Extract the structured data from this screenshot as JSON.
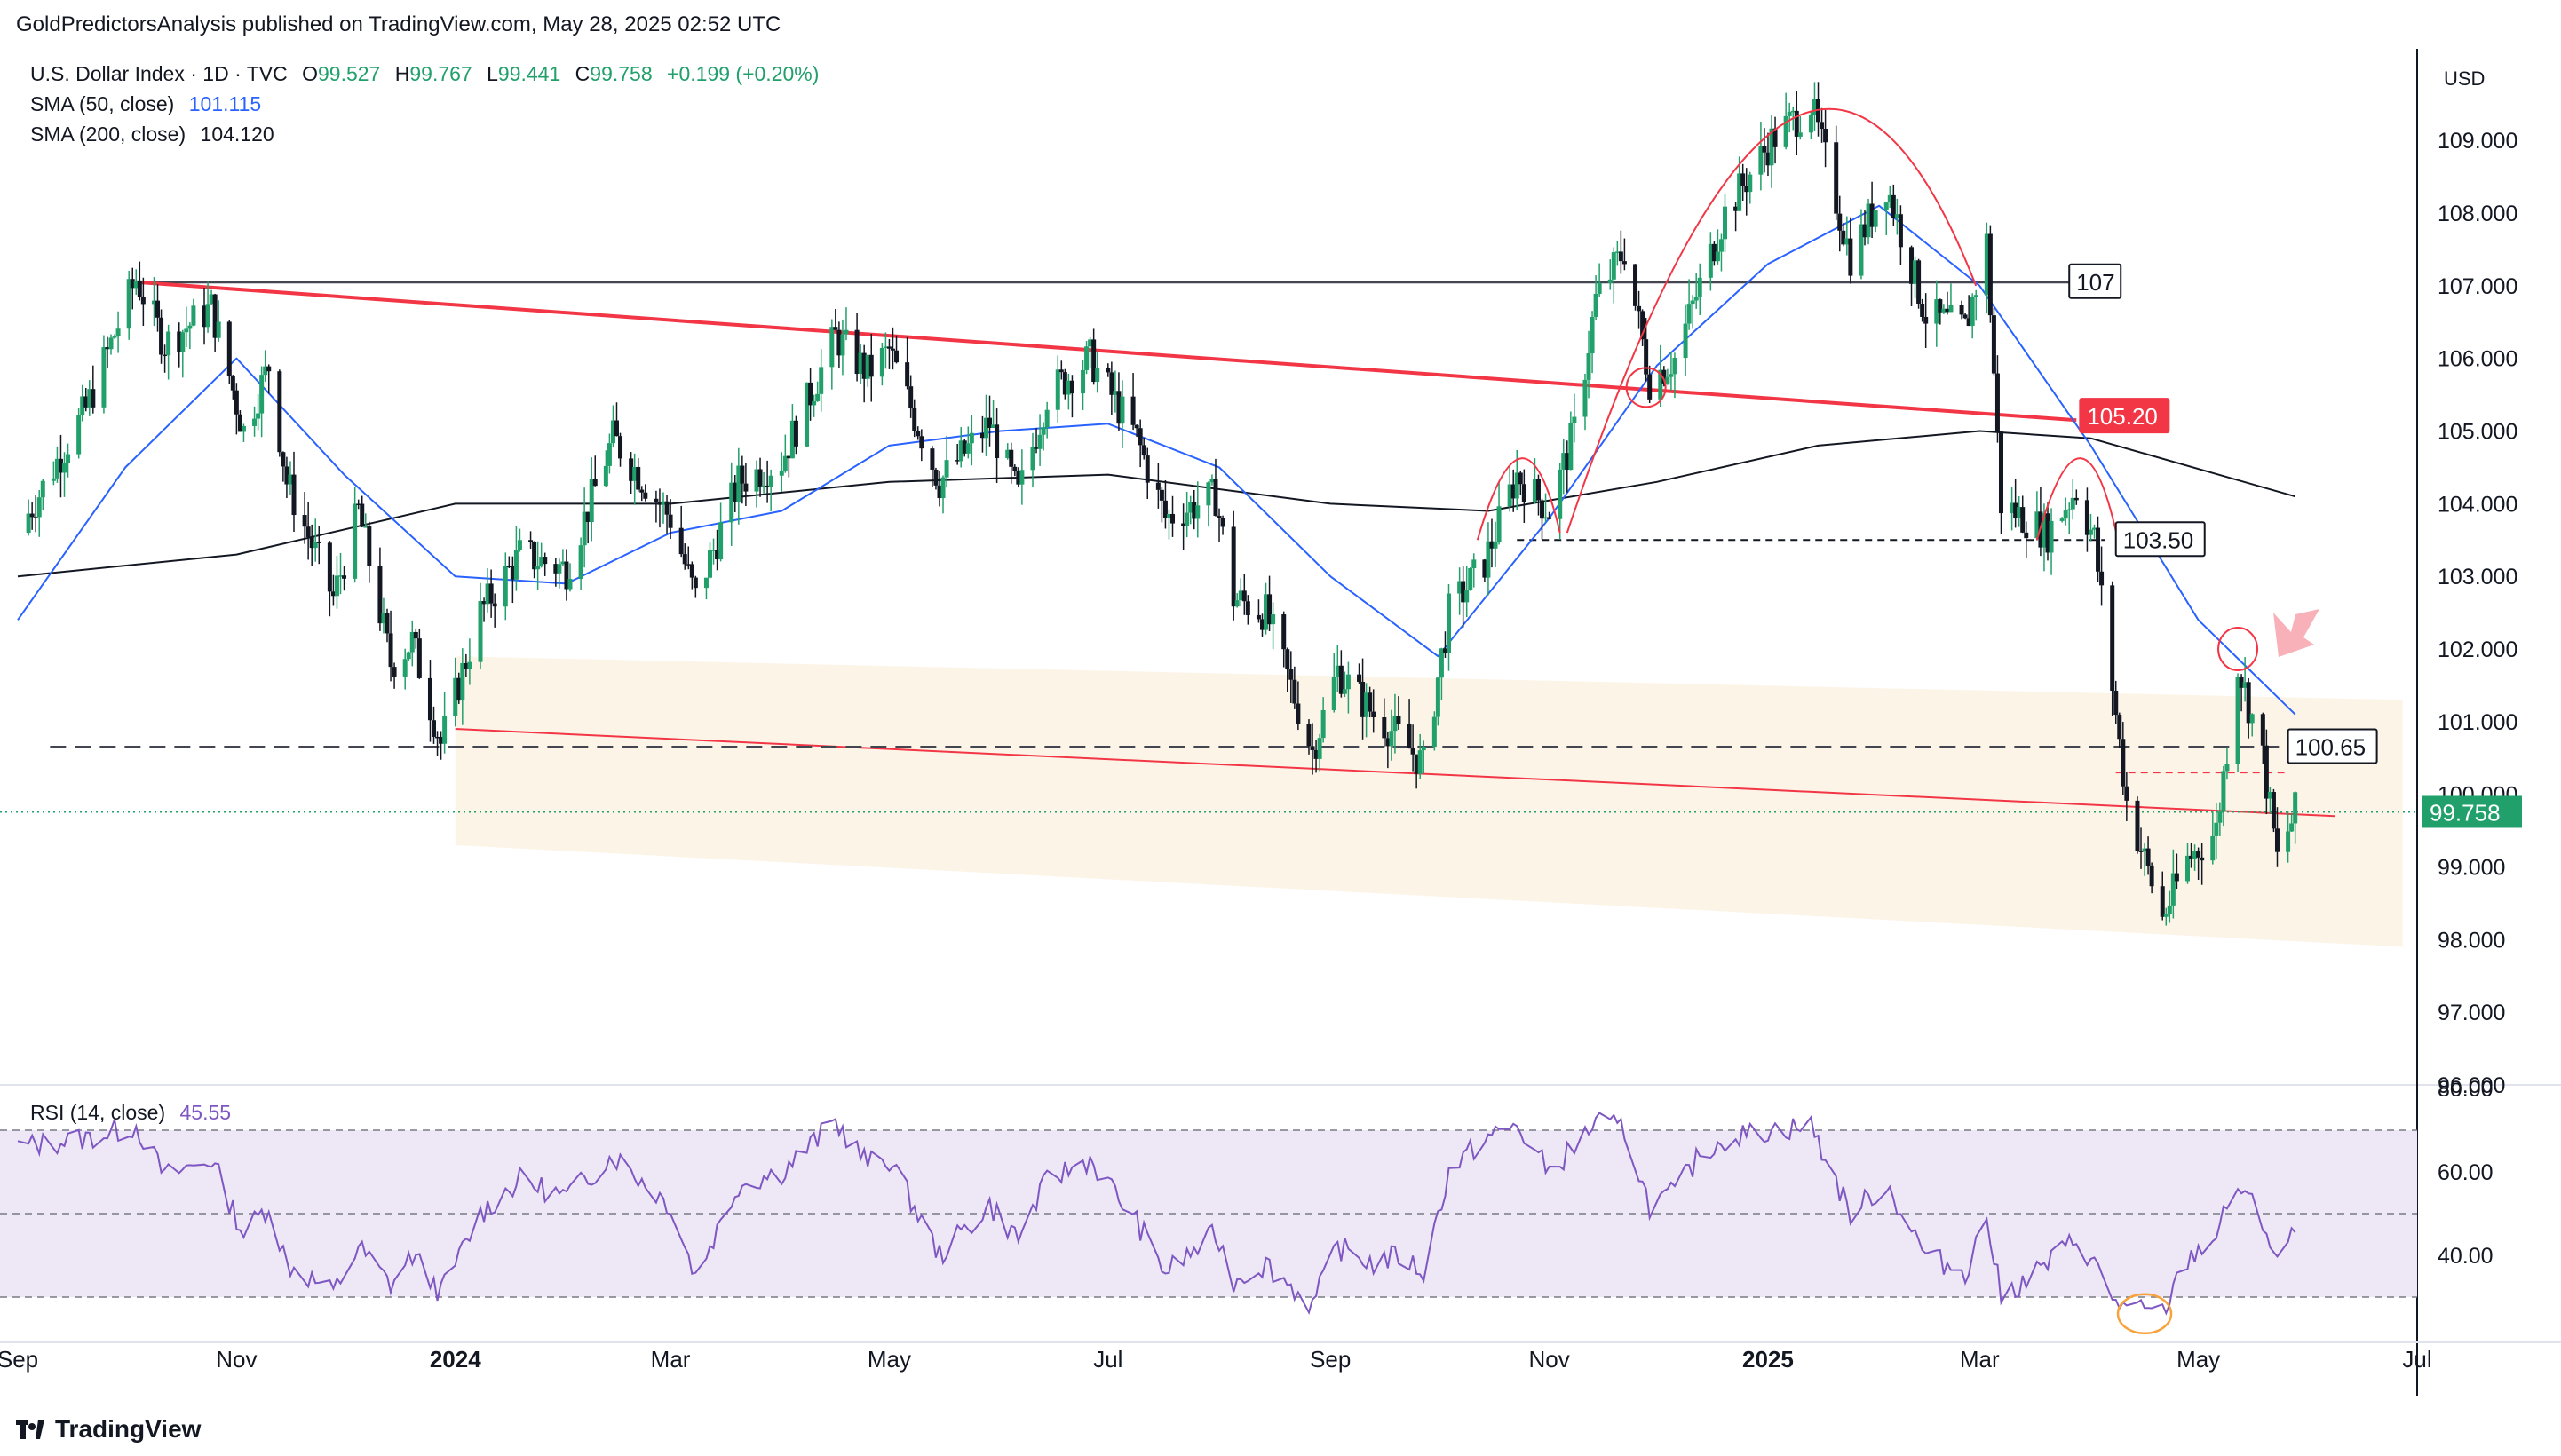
{
  "publisher": "GoldPredictorsAnalysis published on TradingView.com, May 28, 2025 02:52 UTC",
  "footer": {
    "brand": "TradingView"
  },
  "colors": {
    "up": "#22a06b",
    "down": "#131722",
    "sma50": "#2962ff",
    "sma200": "#131722",
    "rsi": "#7e57c2",
    "rsi_band": "#ede7f6",
    "accent_red": "#f23645",
    "zone": "#fdf3e6",
    "price_tag": "#22a06b"
  },
  "legend": {
    "symbol": "U.S. Dollar Index · 1D · TVC",
    "ohlc": [
      {
        "k": "O",
        "v": "99.527"
      },
      {
        "k": "H",
        "v": "99.767"
      },
      {
        "k": "L",
        "v": "99.441"
      },
      {
        "k": "C",
        "v": "99.758"
      }
    ],
    "change": "+0.199 (+0.20%)",
    "sma50_label": "SMA (50, close)",
    "sma50_value": "101.115",
    "sma200_label": "SMA (200, close)",
    "sma200_value": "104.120",
    "rsi_label": "RSI (14, close)",
    "rsi_value": "45.55"
  },
  "currency": "USD",
  "chart_data": [
    {
      "type": "candlestick",
      "title": "U.S. Dollar Index · 1D · TVC",
      "y_axis_ticks": [
        "109.000",
        "108.000",
        "107.000",
        "106.000",
        "105.000",
        "104.000",
        "103.000",
        "102.000",
        "101.000",
        "100.000",
        "99.000",
        "98.000",
        "97.000",
        "96.000"
      ],
      "ylim": [
        96.0,
        110.2
      ],
      "x_axis_ticks": [
        "Sep",
        "Nov",
        "2024",
        "Mar",
        "May",
        "Jul",
        "Sep",
        "Nov",
        "2025",
        "Mar",
        "May",
        "Jul"
      ],
      "x_tick_dates": [
        "2023-09-01",
        "2023-11-01",
        "2024-01-01",
        "2024-03-01",
        "2024-05-01",
        "2024-07-01",
        "2024-09-01",
        "2024-11-01",
        "2025-01-01",
        "2025-03-01",
        "2025-05-01",
        "2025-07-01"
      ],
      "xlim": [
        "2023-09-01",
        "2025-07-01"
      ],
      "last_price": "99.758",
      "price_path": [
        {
          "date": "2023-09-01",
          "close": 103.6
        },
        {
          "date": "2023-09-20",
          "close": 105.3
        },
        {
          "date": "2023-10-04",
          "close": 107.1
        },
        {
          "date": "2023-10-12",
          "close": 106.2
        },
        {
          "date": "2023-10-25",
          "close": 106.7
        },
        {
          "date": "2023-11-03",
          "close": 105.0
        },
        {
          "date": "2023-11-10",
          "close": 105.9
        },
        {
          "date": "2023-11-15",
          "close": 104.3
        },
        {
          "date": "2023-11-28",
          "close": 102.7
        },
        {
          "date": "2023-12-05",
          "close": 103.9
        },
        {
          "date": "2023-12-14",
          "close": 101.8
        },
        {
          "date": "2023-12-20",
          "close": 102.1
        },
        {
          "date": "2023-12-28",
          "close": 100.7
        },
        {
          "date": "2024-01-08",
          "close": 102.5
        },
        {
          "date": "2024-01-19",
          "close": 103.3
        },
        {
          "date": "2024-02-01",
          "close": 103.1
        },
        {
          "date": "2024-02-14",
          "close": 104.9
        },
        {
          "date": "2024-03-01",
          "close": 103.8
        },
        {
          "date": "2024-03-08",
          "close": 102.7
        },
        {
          "date": "2024-03-20",
          "close": 104.3
        },
        {
          "date": "2024-04-01",
          "close": 104.6
        },
        {
          "date": "2024-04-16",
          "close": 106.3
        },
        {
          "date": "2024-04-25",
          "close": 105.8
        },
        {
          "date": "2024-05-01",
          "close": 106.1
        },
        {
          "date": "2024-05-15",
          "close": 104.3
        },
        {
          "date": "2024-05-29",
          "close": 105.1
        },
        {
          "date": "2024-06-06",
          "close": 104.1
        },
        {
          "date": "2024-06-14",
          "close": 105.5
        },
        {
          "date": "2024-06-26",
          "close": 106.0
        },
        {
          "date": "2024-07-09",
          "close": 104.9
        },
        {
          "date": "2024-07-17",
          "close": 103.8
        },
        {
          "date": "2024-07-31",
          "close": 104.1
        },
        {
          "date": "2024-08-05",
          "close": 102.7
        },
        {
          "date": "2024-08-14",
          "close": 102.5
        },
        {
          "date": "2024-08-27",
          "close": 100.6
        },
        {
          "date": "2024-09-03",
          "close": 101.7
        },
        {
          "date": "2024-09-13",
          "close": 101.1
        },
        {
          "date": "2024-09-20",
          "close": 100.8
        },
        {
          "date": "2024-09-27",
          "close": 100.4
        },
        {
          "date": "2024-10-04",
          "close": 102.5
        },
        {
          "date": "2024-10-14",
          "close": 103.2
        },
        {
          "date": "2024-10-23",
          "close": 104.4
        },
        {
          "date": "2024-11-01",
          "close": 103.9
        },
        {
          "date": "2024-11-08",
          "close": 105.0
        },
        {
          "date": "2024-11-14",
          "close": 106.8
        },
        {
          "date": "2024-11-22",
          "close": 107.5
        },
        {
          "date": "2024-11-29",
          "close": 105.7
        },
        {
          "date": "2024-12-06",
          "close": 106.0
        },
        {
          "date": "2024-12-13",
          "close": 107.0
        },
        {
          "date": "2024-12-20",
          "close": 108.0
        },
        {
          "date": "2025-01-02",
          "close": 109.0
        },
        {
          "date": "2025-01-13",
          "close": 109.5
        },
        {
          "date": "2025-01-24",
          "close": 107.4
        },
        {
          "date": "2025-02-03",
          "close": 108.4
        },
        {
          "date": "2025-02-14",
          "close": 106.6
        },
        {
          "date": "2025-02-25",
          "close": 106.4
        },
        {
          "date": "2025-03-03",
          "close": 107.6
        },
        {
          "date": "2025-03-07",
          "close": 104.0
        },
        {
          "date": "2025-03-20",
          "close": 103.6
        },
        {
          "date": "2025-03-28",
          "close": 104.2
        },
        {
          "date": "2025-04-02",
          "close": 103.5
        },
        {
          "date": "2025-04-07",
          "close": 101.5
        },
        {
          "date": "2025-04-11",
          "close": 99.9
        },
        {
          "date": "2025-04-21",
          "close": 98.3
        },
        {
          "date": "2025-04-28",
          "close": 99.1
        },
        {
          "date": "2025-05-06",
          "close": 99.5
        },
        {
          "date": "2025-05-12",
          "close": 101.8
        },
        {
          "date": "2025-05-19",
          "close": 100.5
        },
        {
          "date": "2025-05-23",
          "close": 99.1
        },
        {
          "date": "2025-05-28",
          "close": 99.758
        }
      ],
      "sma50_path": [
        {
          "date": "2023-09-01",
          "v": 102.4
        },
        {
          "date": "2023-10-01",
          "v": 104.5
        },
        {
          "date": "2023-11-01",
          "v": 106.0
        },
        {
          "date": "2023-12-01",
          "v": 104.4
        },
        {
          "date": "2024-01-01",
          "v": 103.0
        },
        {
          "date": "2024-02-01",
          "v": 102.9
        },
        {
          "date": "2024-03-01",
          "v": 103.6
        },
        {
          "date": "2024-04-01",
          "v": 103.9
        },
        {
          "date": "2024-05-01",
          "v": 104.8
        },
        {
          "date": "2024-06-01",
          "v": 105.0
        },
        {
          "date": "2024-07-01",
          "v": 105.1
        },
        {
          "date": "2024-08-01",
          "v": 104.5
        },
        {
          "date": "2024-09-01",
          "v": 103.0
        },
        {
          "date": "2024-10-01",
          "v": 101.9
        },
        {
          "date": "2024-11-01",
          "v": 103.8
        },
        {
          "date": "2024-12-01",
          "v": 105.9
        },
        {
          "date": "2025-01-01",
          "v": 107.3
        },
        {
          "date": "2025-02-01",
          "v": 108.1
        },
        {
          "date": "2025-03-01",
          "v": 107.0
        },
        {
          "date": "2025-04-01",
          "v": 104.8
        },
        {
          "date": "2025-05-01",
          "v": 102.4
        },
        {
          "date": "2025-05-28",
          "v": 101.1
        }
      ],
      "sma200_path": [
        {
          "date": "2023-09-01",
          "v": 103.0
        },
        {
          "date": "2023-11-01",
          "v": 103.3
        },
        {
          "date": "2024-01-01",
          "v": 104.0
        },
        {
          "date": "2024-03-01",
          "v": 104.0
        },
        {
          "date": "2024-05-01",
          "v": 104.3
        },
        {
          "date": "2024-07-01",
          "v": 104.4
        },
        {
          "date": "2024-09-01",
          "v": 104.0
        },
        {
          "date": "2024-10-15",
          "v": 103.9
        },
        {
          "date": "2024-12-01",
          "v": 104.3
        },
        {
          "date": "2025-01-15",
          "v": 104.8
        },
        {
          "date": "2025-03-01",
          "v": 105.0
        },
        {
          "date": "2025-04-01",
          "v": 104.9
        },
        {
          "date": "2025-05-28",
          "v": 104.1
        }
      ],
      "annotations": {
        "level_107": "107",
        "level_105_20": "105.20",
        "level_103_50": "103.50",
        "level_100_65": "100.65"
      },
      "levels": {
        "107": 107.05,
        "105.20": 105.2,
        "103.50": 103.5,
        "100.65": 100.65
      },
      "grid": false
    },
    {
      "type": "line",
      "title": "RSI (14, close)",
      "y_axis_ticks": [
        "80.00",
        "60.00",
        "40.00"
      ],
      "ylim": [
        20,
        80
      ],
      "bands": {
        "upper": 70,
        "middle": 50,
        "lower": 30
      },
      "last_value": "45.55",
      "rsi_path": [
        {
          "date": "2023-09-01",
          "v": 66
        },
        {
          "date": "2023-09-20",
          "v": 68
        },
        {
          "date": "2023-10-04",
          "v": 71
        },
        {
          "date": "2023-10-12",
          "v": 59
        },
        {
          "date": "2023-10-25",
          "v": 63
        },
        {
          "date": "2023-11-03",
          "v": 45
        },
        {
          "date": "2023-11-10",
          "v": 52
        },
        {
          "date": "2023-11-15",
          "v": 38
        },
        {
          "date": "2023-11-28",
          "v": 31
        },
        {
          "date": "2023-12-05",
          "v": 42
        },
        {
          "date": "2023-12-14",
          "v": 33
        },
        {
          "date": "2023-12-20",
          "v": 40
        },
        {
          "date": "2023-12-28",
          "v": 31
        },
        {
          "date": "2024-01-08",
          "v": 50
        },
        {
          "date": "2024-01-19",
          "v": 58
        },
        {
          "date": "2024-02-01",
          "v": 54
        },
        {
          "date": "2024-02-14",
          "v": 64
        },
        {
          "date": "2024-03-01",
          "v": 52
        },
        {
          "date": "2024-03-08",
          "v": 35
        },
        {
          "date": "2024-03-20",
          "v": 57
        },
        {
          "date": "2024-04-01",
          "v": 60
        },
        {
          "date": "2024-04-16",
          "v": 72
        },
        {
          "date": "2024-04-25",
          "v": 62
        },
        {
          "date": "2024-05-01",
          "v": 63
        },
        {
          "date": "2024-05-15",
          "v": 40
        },
        {
          "date": "2024-05-29",
          "v": 52
        },
        {
          "date": "2024-06-06",
          "v": 44
        },
        {
          "date": "2024-06-14",
          "v": 58
        },
        {
          "date": "2024-06-26",
          "v": 63
        },
        {
          "date": "2024-07-09",
          "v": 48
        },
        {
          "date": "2024-07-17",
          "v": 36
        },
        {
          "date": "2024-07-31",
          "v": 45
        },
        {
          "date": "2024-08-05",
          "v": 34
        },
        {
          "date": "2024-08-14",
          "v": 38
        },
        {
          "date": "2024-08-27",
          "v": 28
        },
        {
          "date": "2024-09-03",
          "v": 42
        },
        {
          "date": "2024-09-13",
          "v": 38
        },
        {
          "date": "2024-09-20",
          "v": 40
        },
        {
          "date": "2024-09-27",
          "v": 36
        },
        {
          "date": "2024-10-04",
          "v": 60
        },
        {
          "date": "2024-10-14",
          "v": 68
        },
        {
          "date": "2024-10-23",
          "v": 71
        },
        {
          "date": "2024-11-01",
          "v": 60
        },
        {
          "date": "2024-11-08",
          "v": 66
        },
        {
          "date": "2024-11-14",
          "v": 72
        },
        {
          "date": "2024-11-22",
          "v": 70
        },
        {
          "date": "2024-11-29",
          "v": 52
        },
        {
          "date": "2024-12-06",
          "v": 55
        },
        {
          "date": "2024-12-13",
          "v": 64
        },
        {
          "date": "2024-12-20",
          "v": 68
        },
        {
          "date": "2025-01-02",
          "v": 70
        },
        {
          "date": "2025-01-13",
          "v": 71
        },
        {
          "date": "2025-01-24",
          "v": 50
        },
        {
          "date": "2025-02-03",
          "v": 57
        },
        {
          "date": "2025-02-14",
          "v": 40
        },
        {
          "date": "2025-02-25",
          "v": 36
        },
        {
          "date": "2025-03-03",
          "v": 49
        },
        {
          "date": "2025-03-07",
          "v": 30
        },
        {
          "date": "2025-03-20",
          "v": 38
        },
        {
          "date": "2025-03-28",
          "v": 44
        },
        {
          "date": "2025-04-02",
          "v": 38
        },
        {
          "date": "2025-04-07",
          "v": 30
        },
        {
          "date": "2025-04-11",
          "v": 27
        },
        {
          "date": "2025-04-21",
          "v": 26
        },
        {
          "date": "2025-04-28",
          "v": 39
        },
        {
          "date": "2025-05-06",
          "v": 45
        },
        {
          "date": "2025-05-12",
          "v": 57
        },
        {
          "date": "2025-05-19",
          "v": 48
        },
        {
          "date": "2025-05-23",
          "v": 39
        },
        {
          "date": "2025-05-28",
          "v": 45.55
        }
      ]
    }
  ]
}
